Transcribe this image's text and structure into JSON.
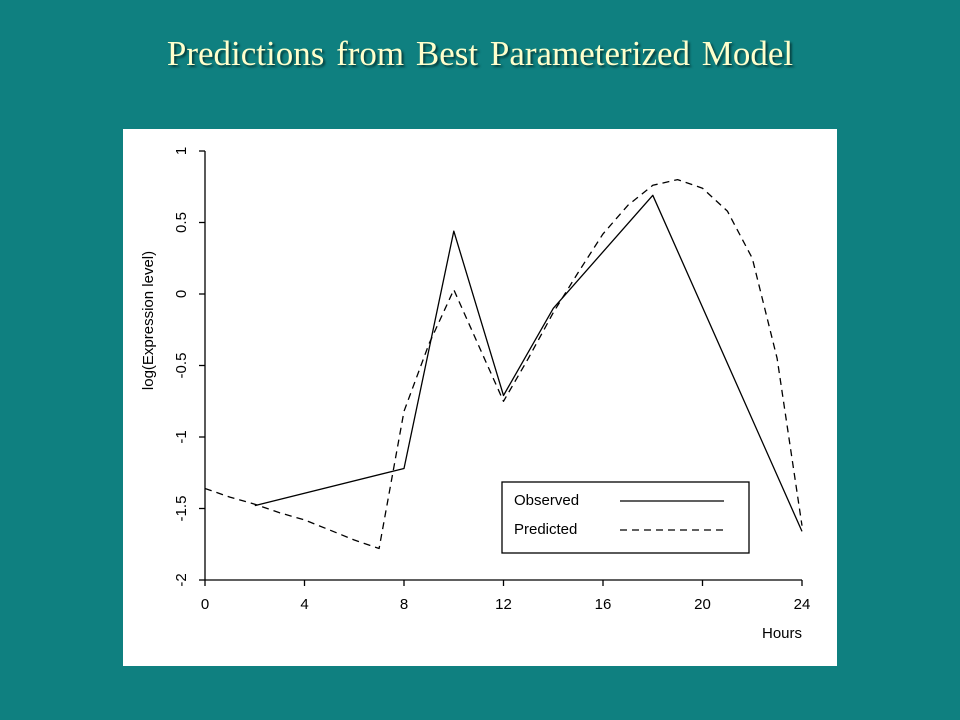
{
  "slide": {
    "title": "Predictions from Best Parameterized Model"
  },
  "colors": {
    "background": "#0f8080",
    "title": "#ffffcc",
    "plot_background": "#ffffff",
    "ink": "#000000"
  },
  "chart_data": {
    "type": "line",
    "title": "",
    "xlabel": "Hours",
    "ylabel": "log(Expression level)",
    "xlim": [
      0,
      24
    ],
    "ylim": [
      -2,
      1
    ],
    "xticks": [
      0,
      4,
      8,
      12,
      16,
      20,
      24
    ],
    "xtick_labels": [
      "0",
      "4",
      "8",
      "12",
      "16",
      "20",
      "24"
    ],
    "yticks": [
      -2,
      -1.5,
      -1,
      -0.5,
      0,
      0.5,
      1
    ],
    "ytick_labels": [
      "-2",
      "-1.5",
      "-1",
      "-0.5",
      "0",
      "0.5",
      "1"
    ],
    "grid": false,
    "legend_position": "bottom-right",
    "series": [
      {
        "name": "Observed",
        "style": "solid",
        "x": [
          2,
          8,
          10,
          12,
          14,
          18,
          24
        ],
        "y": [
          -1.48,
          -1.22,
          0.44,
          -0.71,
          -0.1,
          0.69,
          -1.66
        ]
      },
      {
        "name": "Predicted",
        "style": "dashed",
        "x": [
          0,
          1,
          2,
          3,
          4,
          5,
          6,
          7,
          8,
          9,
          10,
          11,
          12,
          13,
          14,
          15,
          16,
          17,
          18,
          19,
          20,
          21,
          22,
          23,
          24
        ],
        "y": [
          -1.36,
          -1.42,
          -1.47,
          -1.53,
          -1.58,
          -1.65,
          -1.72,
          -1.78,
          -0.82,
          -0.35,
          0.03,
          -0.36,
          -0.75,
          -0.45,
          -0.13,
          0.15,
          0.42,
          0.62,
          0.76,
          0.8,
          0.74,
          0.58,
          0.25,
          -0.45,
          -1.62
        ]
      }
    ]
  }
}
